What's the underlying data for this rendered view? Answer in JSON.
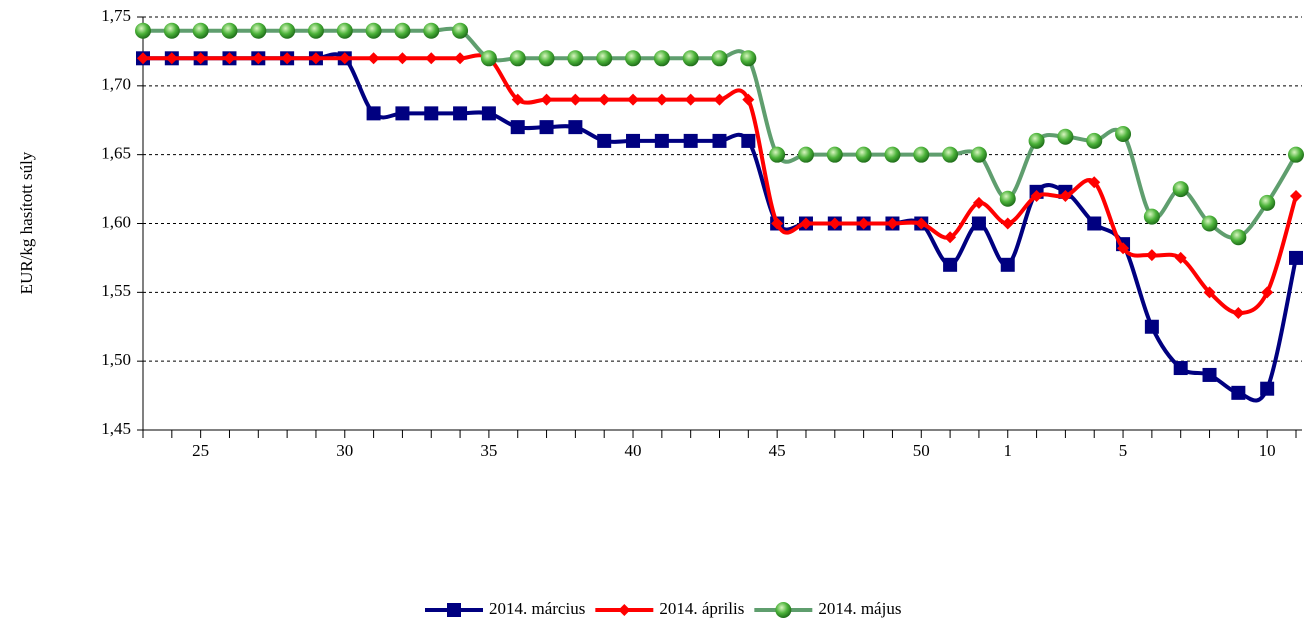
{
  "chart_data": {
    "type": "line",
    "y_label": "EUR/kg hasított súly",
    "categories": [
      null,
      null,
      "25",
      null,
      null,
      null,
      null,
      "30",
      null,
      null,
      null,
      null,
      "35",
      null,
      null,
      null,
      null,
      "40",
      null,
      null,
      null,
      null,
      "45",
      null,
      null,
      null,
      null,
      "50",
      null,
      null,
      "1",
      null,
      null,
      null,
      "5",
      null,
      null,
      null,
      null,
      "10",
      null
    ],
    "series": [
      {
        "name": "2014. március",
        "color": "#000080",
        "marker": "square",
        "values": [
          1.72,
          1.72,
          1.72,
          1.72,
          1.72,
          1.72,
          1.72,
          1.72,
          1.68,
          1.68,
          1.68,
          1.68,
          1.68,
          1.67,
          1.67,
          1.67,
          1.66,
          1.66,
          1.66,
          1.66,
          1.66,
          1.66,
          1.6,
          1.6,
          1.6,
          1.6,
          1.6,
          1.6,
          1.57,
          1.6,
          1.57,
          1.623,
          1.623,
          1.6,
          1.585,
          1.525,
          1.495,
          1.49,
          1.477,
          1.48,
          1.575
        ]
      },
      {
        "name": "2014. április",
        "color": "#ff0000",
        "marker": "diamond",
        "values": [
          1.72,
          1.72,
          1.72,
          1.72,
          1.72,
          1.72,
          1.72,
          1.72,
          1.72,
          1.72,
          1.72,
          1.72,
          1.72,
          1.69,
          1.69,
          1.69,
          1.69,
          1.69,
          1.69,
          1.69,
          1.69,
          1.69,
          1.6,
          1.6,
          1.6,
          1.6,
          1.6,
          1.6,
          1.59,
          1.615,
          1.6,
          1.62,
          1.62,
          1.63,
          1.582,
          1.577,
          1.575,
          1.55,
          1.535,
          1.55,
          1.62
        ]
      },
      {
        "name": "2014. május",
        "color": "#5f9e6e",
        "marker": "circle",
        "values": [
          1.74,
          1.74,
          1.74,
          1.74,
          1.74,
          1.74,
          1.74,
          1.74,
          1.74,
          1.74,
          1.74,
          1.74,
          1.72,
          1.72,
          1.72,
          1.72,
          1.72,
          1.72,
          1.72,
          1.72,
          1.72,
          1.72,
          1.65,
          1.65,
          1.65,
          1.65,
          1.65,
          1.65,
          1.65,
          1.65,
          1.618,
          1.66,
          1.663,
          1.66,
          1.665,
          1.605,
          1.625,
          1.6,
          1.59,
          1.615,
          1.65
        ]
      }
    ],
    "ylim": [
      1.45,
      1.75
    ],
    "yticks": [
      {
        "value": 1.45,
        "label": "1,45"
      },
      {
        "value": 1.5,
        "label": "1,50"
      },
      {
        "value": 1.55,
        "label": "1,55"
      },
      {
        "value": 1.6,
        "label": "1,60"
      },
      {
        "value": 1.65,
        "label": "1,65"
      },
      {
        "value": 1.7,
        "label": "1,70"
      },
      {
        "value": 1.75,
        "label": "1,75"
      }
    ],
    "grid": true,
    "legend": "bottom"
  }
}
